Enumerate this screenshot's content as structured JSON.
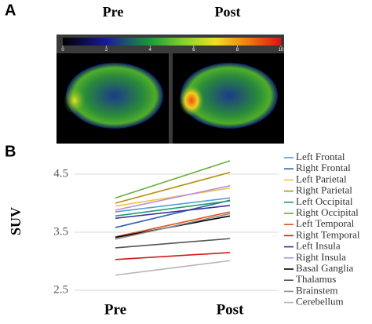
{
  "panel_a": {
    "label": "A",
    "columns": [
      "Pre",
      "Post"
    ],
    "colorbar": {
      "lim": [
        0,
        10
      ],
      "ticks": [
        0,
        2,
        4,
        6,
        8,
        10
      ]
    }
  },
  "chart_data": {
    "type": "line",
    "panel_label": "B",
    "ylabel": "SUV",
    "categories": [
      "Pre",
      "Post"
    ],
    "ylim": [
      2.5,
      4.9
    ],
    "yticks": [
      2.5,
      3.5,
      4.5
    ],
    "grid": true,
    "series": [
      {
        "name": "Left Frontal",
        "color": "#5b9bd5",
        "values": [
          3.85,
          4.09
        ]
      },
      {
        "name": "Right Frontal",
        "color": "#2e5fa8",
        "values": [
          3.58,
          4.05
        ]
      },
      {
        "name": "Left Parietal",
        "color": "#f5c242",
        "values": [
          3.95,
          4.26
        ]
      },
      {
        "name": "Right Parietal",
        "color": "#b8900c",
        "values": [
          4.0,
          4.53
        ]
      },
      {
        "name": "Left Occipital",
        "color": "#1f9e6e",
        "values": [
          3.78,
          4.04
        ]
      },
      {
        "name": "Right Occipital",
        "color": "#6aac3c",
        "values": [
          4.09,
          4.73
        ]
      },
      {
        "name": "Left Temporal",
        "color": "#e0531c",
        "values": [
          3.42,
          3.85
        ]
      },
      {
        "name": "Right Temporal",
        "color": "#d11a1a",
        "values": [
          3.03,
          3.15
        ]
      },
      {
        "name": "Left Insula",
        "color": "#3a2c9c",
        "values": [
          3.74,
          3.96
        ]
      },
      {
        "name": "Right Insula",
        "color": "#b48ee0",
        "values": [
          3.88,
          4.3
        ]
      },
      {
        "name": "Basal Ganglia",
        "color": "#000000",
        "values": [
          3.41,
          3.78
        ]
      },
      {
        "name": "Thalamus",
        "color": "#555555",
        "values": [
          3.23,
          3.39
        ]
      },
      {
        "name": "Brainstem",
        "color": "#8c8c8c",
        "values": [
          3.38,
          3.82
        ]
      },
      {
        "name": "Cerebellum",
        "color": "#b5b5b5",
        "values": [
          2.76,
          3.01
        ]
      }
    ]
  }
}
